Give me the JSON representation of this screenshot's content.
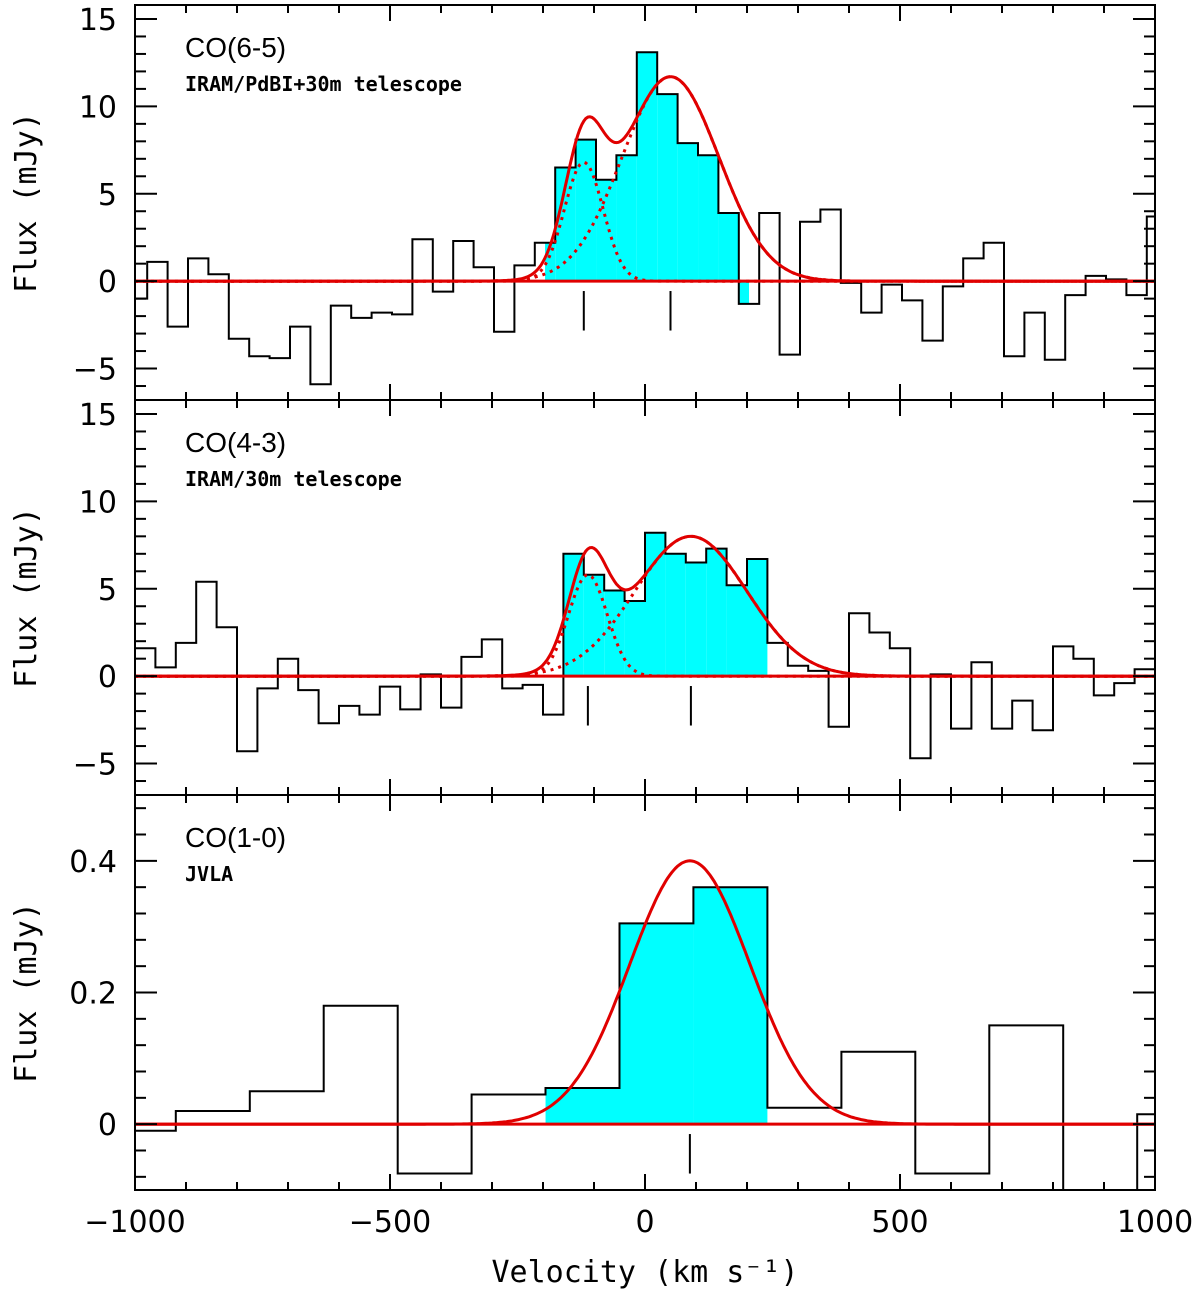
{
  "chart_data": {
    "type": "line",
    "xlabel": "Velocity (km s⁻¹)",
    "xlim": [
      -1000,
      1000
    ],
    "xticks": [
      -1000,
      -500,
      0,
      500,
      1000
    ],
    "xtick_labels": [
      "−1000",
      "−500",
      "0",
      "500",
      "1000"
    ],
    "colors": {
      "fill": "#00ffff",
      "fit": "#e00000",
      "histogram": "#000000"
    },
    "panels": [
      {
        "title": "CO(6-5)",
        "subtitle": "IRAM/PdBI+30m telescope",
        "ylabel": "Flux (mJy)",
        "ylim": [
          -6.8,
          15.8
        ],
        "yticks": [
          -5,
          0,
          5,
          10,
          15
        ],
        "ytick_labels": [
          "−5",
          "0",
          "5",
          "10",
          "15"
        ],
        "step_x": [
          -1010,
          -976,
          -936,
          -896,
          -856,
          -816,
          -776,
          -736,
          -696,
          -656,
          -616,
          -576,
          -536,
          -496,
          -456,
          -416,
          -376,
          -336,
          -296,
          -256,
          -216,
          -176,
          -136,
          -96,
          -56,
          -16,
          24,
          64,
          104,
          144,
          184,
          224,
          264,
          304,
          344,
          384,
          424,
          464,
          504,
          544,
          584,
          624,
          664,
          704,
          744,
          784,
          824,
          864,
          904,
          944,
          984,
          1000
        ],
        "step_y": [
          -1.0,
          1.1,
          -2.6,
          1.3,
          0.4,
          -3.3,
          -4.3,
          -4.4,
          -2.6,
          -5.9,
          -1.4,
          -2.1,
          -1.8,
          -1.9,
          2.4,
          -0.6,
          2.3,
          0.8,
          -2.9,
          0.9,
          2.2,
          6.5,
          8.1,
          5.8,
          7.2,
          13.1,
          10.7,
          7.9,
          7.2,
          3.9,
          -1.3,
          3.9,
          -4.2,
          3.4,
          4.1,
          -0.1,
          -1.8,
          -0.2,
          -1.1,
          -3.4,
          -0.3,
          1.3,
          2.2,
          -4.3,
          -1.8,
          -4.5,
          -0.8,
          0.3,
          0.1,
          -0.8,
          3.7
        ],
        "fill_range": [
          -196,
          204
        ],
        "components": [
          {
            "amp": 6.8,
            "center": -120,
            "sigma": 38
          },
          {
            "amp": 11.7,
            "center": 50,
            "sigma": 95
          }
        ],
        "line_markers": [
          -120,
          50
        ]
      },
      {
        "title": "CO(4-3)",
        "subtitle": "IRAM/30m telescope",
        "ylabel": "Flux (mJy)",
        "ylim": [
          -6.8,
          15.8
        ],
        "yticks": [
          -5,
          0,
          5,
          10,
          15
        ],
        "ytick_labels": [
          "−5",
          "0",
          "5",
          "10",
          "15"
        ],
        "step_x": [
          -1010,
          -960,
          -920,
          -880,
          -840,
          -800,
          -760,
          -720,
          -680,
          -640,
          -600,
          -560,
          -520,
          -480,
          -440,
          -400,
          -360,
          -320,
          -280,
          -240,
          -200,
          -160,
          -120,
          -80,
          -40,
          0,
          40,
          80,
          120,
          160,
          200,
          240,
          280,
          320,
          360,
          400,
          440,
          480,
          520,
          560,
          600,
          640,
          680,
          720,
          760,
          800,
          840,
          880,
          920,
          960,
          1000
        ],
        "step_y": [
          1.6,
          0.5,
          1.9,
          5.4,
          2.8,
          -4.3,
          -0.7,
          1.0,
          -0.8,
          -2.7,
          -1.7,
          -2.2,
          -0.6,
          -1.9,
          0.1,
          -1.8,
          1.1,
          2.1,
          -0.7,
          -0.5,
          -2.2,
          7.0,
          5.8,
          4.9,
          4.3,
          8.2,
          7.0,
          6.5,
          7.3,
          5.2,
          6.7,
          1.9,
          0.6,
          0.3,
          -2.9,
          3.6,
          2.5,
          1.6,
          -4.7,
          0.1,
          -3.0,
          0.8,
          -3.0,
          -1.4,
          -3.1,
          1.7,
          1.0,
          -1.1,
          -0.4,
          0.4,
          -1.4
        ],
        "fill_range": [
          -160,
          240
        ],
        "components": [
          {
            "amp": 5.8,
            "center": -112,
            "sigma": 38
          },
          {
            "amp": 8.0,
            "center": 90,
            "sigma": 110
          }
        ],
        "line_markers": [
          -112,
          90
        ]
      },
      {
        "title": "CO(1-0)",
        "subtitle": "JVLA",
        "ylabel": "Flux (mJy)",
        "ylim": [
          -0.1,
          0.5
        ],
        "yticks": [
          0,
          0.2,
          0.4
        ],
        "ytick_labels": [
          "0",
          "0.2",
          "0.4"
        ],
        "step_x": [
          -1010,
          -920,
          -775,
          -630,
          -485,
          -340,
          -195,
          -50,
          95,
          240,
          385,
          530,
          675,
          820,
          965,
          1000
        ],
        "step_y": [
          -0.01,
          0.02,
          0.05,
          0.18,
          -0.075,
          0.045,
          0.055,
          0.305,
          0.36,
          0.025,
          0.11,
          -0.075,
          0.15,
          -0.1,
          0.015
        ],
        "fill_range": [
          -195,
          240
        ],
        "components": [
          {
            "amp": 0.4,
            "center": 88,
            "sigma": 118
          }
        ],
        "line_markers": [
          88
        ]
      }
    ]
  }
}
